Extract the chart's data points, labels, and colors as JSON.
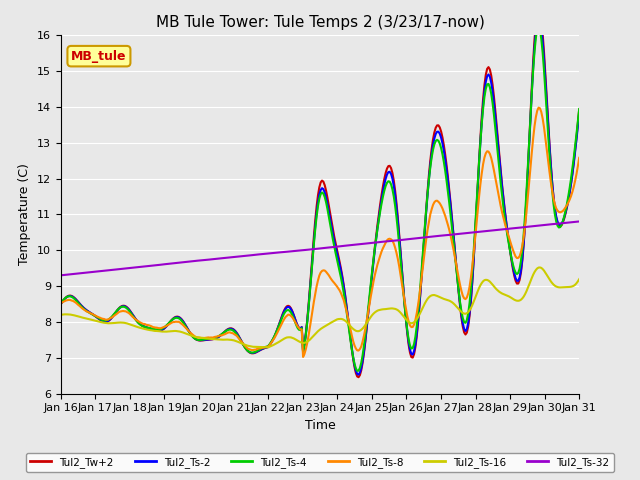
{
  "title": "MB Tule Tower: Tule Temps 2 (3/23/17-now)",
  "xlabel": "Time",
  "ylabel": "Temperature (C)",
  "ylim": [
    6.0,
    16.0
  ],
  "yticks": [
    6.0,
    7.0,
    8.0,
    9.0,
    10.0,
    11.0,
    12.0,
    13.0,
    14.0,
    15.0,
    16.0
  ],
  "background_color": "#e8e8e8",
  "plot_bg_color": "#e8e8e8",
  "legend_box_color": "#ffff99",
  "legend_box_edge": "#cc9900",
  "series": {
    "Tul2_Tw+2": {
      "color": "#cc0000",
      "lw": 1.5
    },
    "Tul2_Ts-2": {
      "color": "#0000ff",
      "lw": 1.5
    },
    "Tul2_Ts-4": {
      "color": "#00cc00",
      "lw": 1.5
    },
    "Tul2_Ts-8": {
      "color": "#ff8800",
      "lw": 1.5
    },
    "Tul2_Ts-16": {
      "color": "#cccc00",
      "lw": 1.5
    },
    "Tul2_Ts-32": {
      "color": "#9900cc",
      "lw": 1.5
    }
  },
  "xtick_labels": [
    "Jan 16",
    "Jan 17",
    "Jan 18",
    "Jan 19",
    "Jan 20",
    "Jan 21",
    "Jan 22",
    "Jan 23",
    "Jan 24",
    "Jan 25",
    "Jan 26",
    "Jan 27",
    "Jan 28",
    "Jan 29",
    "Jan 30",
    "Jan 31"
  ],
  "inset_label": "MB_tule",
  "inset_color": "#cc0000",
  "inset_bg": "#ffff99",
  "inset_edge": "#cc9900"
}
